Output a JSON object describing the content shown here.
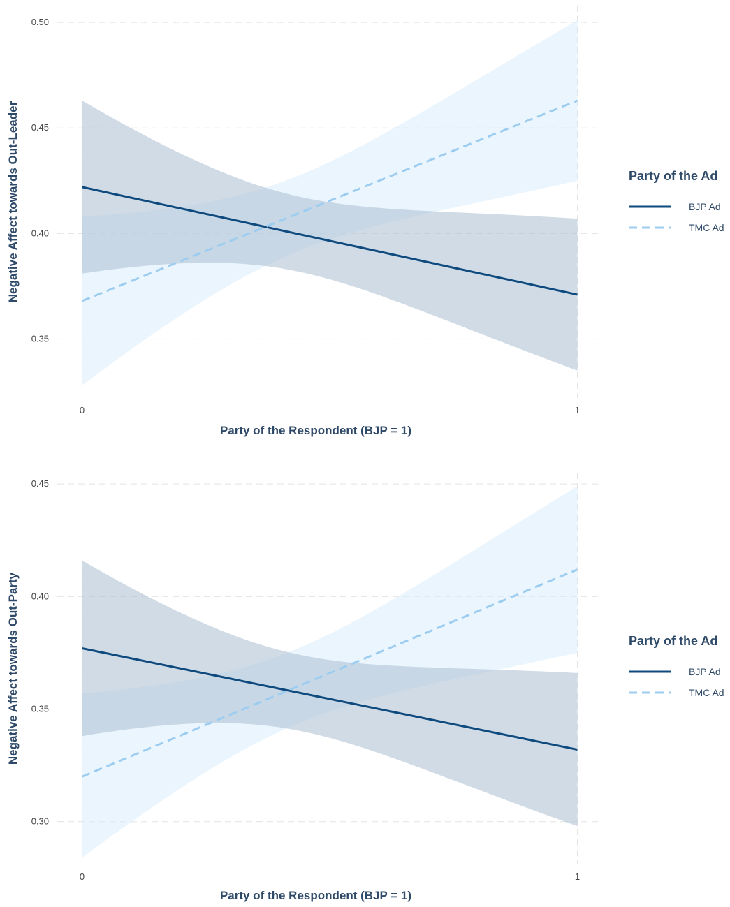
{
  "colors": {
    "bjp_line": "#0f4a7e",
    "bjp_band": "#a9bdd1",
    "tmc_line": "#9ccdf0",
    "tmc_band": "#d6ebfb",
    "grid": "#e4e4e4",
    "text": "#2f4a68"
  },
  "chart_data": [
    {
      "type": "line",
      "xlabel": "Party of the Respondent (BJP = 1)",
      "ylabel": "Negative Affect towards Out-Leader",
      "x_ticks": [
        0,
        1
      ],
      "x_tick_labels": [
        "0",
        "1"
      ],
      "y_ticks": [
        0.35,
        0.4,
        0.45,
        0.5
      ],
      "y_tick_labels": [
        "0.35",
        "0.40",
        "0.45",
        "0.50"
      ],
      "xlim": [
        -0.05,
        1.05
      ],
      "ylim": [
        0.322,
        0.508
      ],
      "grid": true,
      "legend": {
        "title": "Party of the Ad",
        "position": "right",
        "entries": [
          "BJP Ad",
          "TMC Ad"
        ]
      },
      "series": [
        {
          "name": "BJP Ad",
          "style": "solid",
          "x": [
            0,
            1
          ],
          "y": [
            0.422,
            0.371
          ],
          "lower": [
            0.381,
            0.335
          ],
          "upper": [
            0.463,
            0.407
          ]
        },
        {
          "name": "TMC Ad",
          "style": "dashed",
          "x": [
            0,
            1
          ],
          "y": [
            0.368,
            0.463
          ],
          "lower": [
            0.328,
            0.425
          ],
          "upper": [
            0.408,
            0.501
          ]
        }
      ]
    },
    {
      "type": "line",
      "xlabel": "Party of the Respondent (BJP = 1)",
      "ylabel": "Negative Affect towards Out-Party",
      "x_ticks": [
        0,
        1
      ],
      "x_tick_labels": [
        "0",
        "1"
      ],
      "y_ticks": [
        0.3,
        0.35,
        0.4,
        0.45
      ],
      "y_tick_labels": [
        "0.30",
        "0.35",
        "0.40",
        "0.45"
      ],
      "xlim": [
        -0.05,
        1.05
      ],
      "ylim": [
        0.281,
        0.455
      ],
      "grid": true,
      "legend": {
        "title": "Party of the Ad",
        "position": "right",
        "entries": [
          "BJP Ad",
          "TMC Ad"
        ]
      },
      "series": [
        {
          "name": "BJP Ad",
          "style": "solid",
          "x": [
            0,
            1
          ],
          "y": [
            0.377,
            0.332
          ],
          "lower": [
            0.338,
            0.298
          ],
          "upper": [
            0.416,
            0.366
          ]
        },
        {
          "name": "TMC Ad",
          "style": "dashed",
          "x": [
            0,
            1
          ],
          "y": [
            0.32,
            0.412
          ],
          "lower": [
            0.284,
            0.375
          ],
          "upper": [
            0.357,
            0.449
          ]
        }
      ]
    }
  ]
}
